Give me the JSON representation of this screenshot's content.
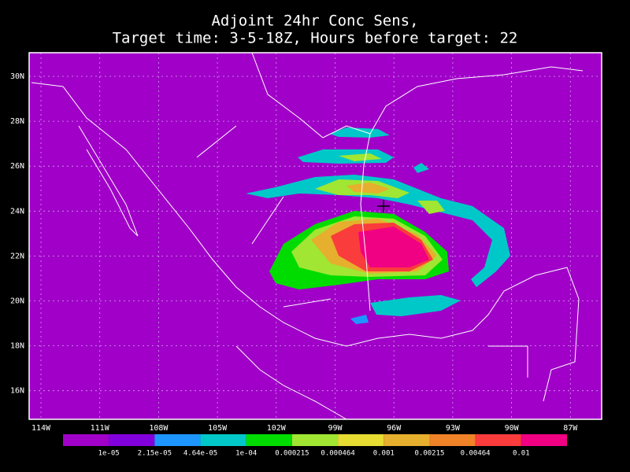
{
  "title": [
    "Adjoint 24hr Conc Sens,",
    "Target time: 3-5-18Z, Hours before target: 22"
  ],
  "lat_labels": [
    "30N",
    "28N",
    "26N",
    "24N",
    "22N",
    "20N",
    "18N",
    "16N"
  ],
  "lon_labels": [
    "114W",
    "111W",
    "108W",
    "105W",
    "102W",
    "99W",
    "96W",
    "93W",
    "90W",
    "87W"
  ],
  "colorbar": {
    "labels": [
      "1e-05",
      "2.15e-05",
      "4.64e-05",
      "1e-04",
      "0.000215",
      "0.000464",
      "0.001",
      "0.00215",
      "0.00464",
      "0.01"
    ],
    "colors": [
      "#a000c8",
      "#8200dc",
      "#1e96ff",
      "#00c8c8",
      "#00dc00",
      "#a0e632",
      "#e6dc32",
      "#e6af2d",
      "#f08228",
      "#fa3c3c",
      "#f00082"
    ]
  }
}
